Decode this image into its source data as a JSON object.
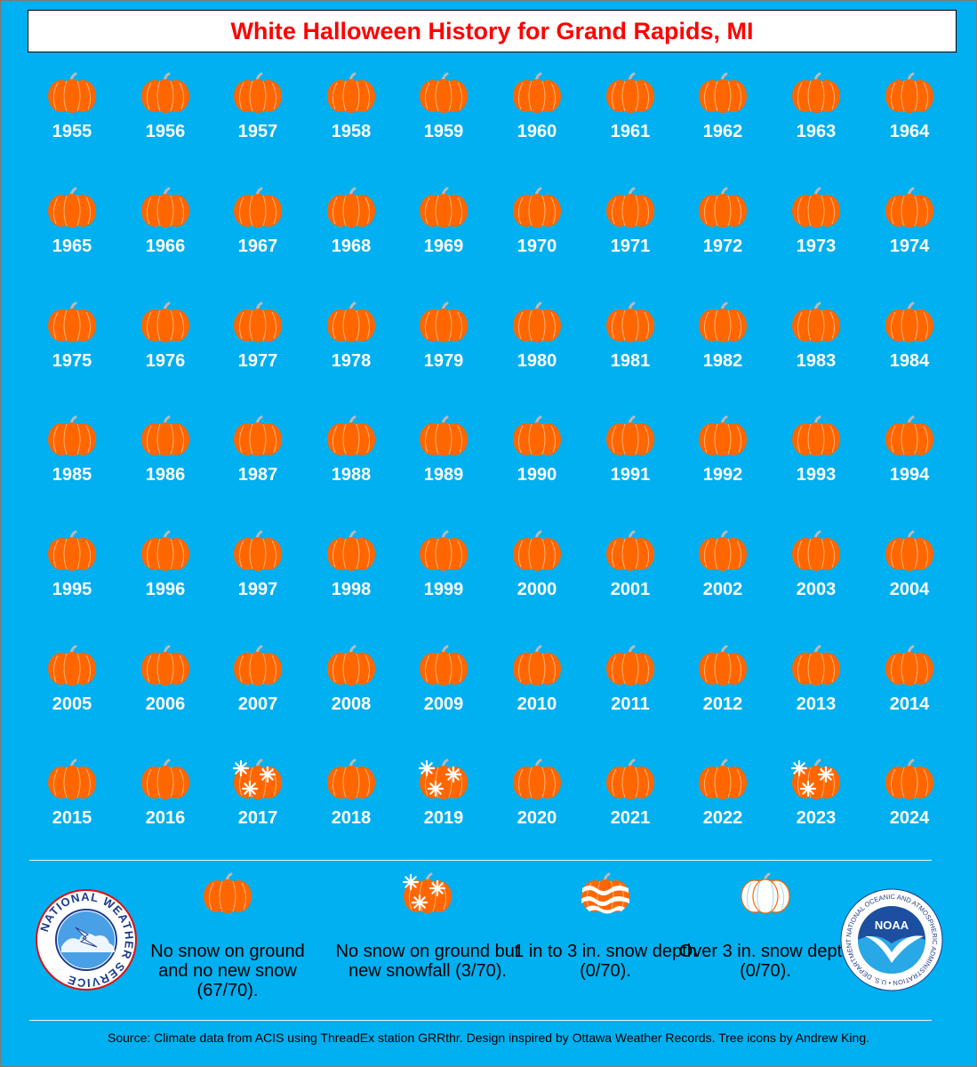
{
  "title": "White Halloween History for Grand Rapids, MI",
  "colors": {
    "background": "#00B0F0",
    "pumpkin": "#FF6600",
    "title": "#FF0000",
    "snow": "#FFFFFF"
  },
  "years": [
    {
      "year": "1955",
      "category": "none"
    },
    {
      "year": "1956",
      "category": "none"
    },
    {
      "year": "1957",
      "category": "none"
    },
    {
      "year": "1958",
      "category": "none"
    },
    {
      "year": "1959",
      "category": "none"
    },
    {
      "year": "1960",
      "category": "none"
    },
    {
      "year": "1961",
      "category": "none"
    },
    {
      "year": "1962",
      "category": "none"
    },
    {
      "year": "1963",
      "category": "none"
    },
    {
      "year": "1964",
      "category": "none"
    },
    {
      "year": "1965",
      "category": "none"
    },
    {
      "year": "1966",
      "category": "none"
    },
    {
      "year": "1967",
      "category": "none"
    },
    {
      "year": "1968",
      "category": "none"
    },
    {
      "year": "1969",
      "category": "none"
    },
    {
      "year": "1970",
      "category": "none"
    },
    {
      "year": "1971",
      "category": "none"
    },
    {
      "year": "1972",
      "category": "none"
    },
    {
      "year": "1973",
      "category": "none"
    },
    {
      "year": "1974",
      "category": "none"
    },
    {
      "year": "1975",
      "category": "none"
    },
    {
      "year": "1976",
      "category": "none"
    },
    {
      "year": "1977",
      "category": "none"
    },
    {
      "year": "1978",
      "category": "none"
    },
    {
      "year": "1979",
      "category": "none"
    },
    {
      "year": "1980",
      "category": "none"
    },
    {
      "year": "1981",
      "category": "none"
    },
    {
      "year": "1982",
      "category": "none"
    },
    {
      "year": "1983",
      "category": "none"
    },
    {
      "year": "1984",
      "category": "none"
    },
    {
      "year": "1985",
      "category": "none"
    },
    {
      "year": "1986",
      "category": "none"
    },
    {
      "year": "1987",
      "category": "none"
    },
    {
      "year": "1988",
      "category": "none"
    },
    {
      "year": "1989",
      "category": "none"
    },
    {
      "year": "1990",
      "category": "none"
    },
    {
      "year": "1991",
      "category": "none"
    },
    {
      "year": "1992",
      "category": "none"
    },
    {
      "year": "1993",
      "category": "none"
    },
    {
      "year": "1994",
      "category": "none"
    },
    {
      "year": "1995",
      "category": "none"
    },
    {
      "year": "1996",
      "category": "none"
    },
    {
      "year": "1997",
      "category": "none"
    },
    {
      "year": "1998",
      "category": "none"
    },
    {
      "year": "1999",
      "category": "none"
    },
    {
      "year": "2000",
      "category": "none"
    },
    {
      "year": "2001",
      "category": "none"
    },
    {
      "year": "2002",
      "category": "none"
    },
    {
      "year": "2003",
      "category": "none"
    },
    {
      "year": "2004",
      "category": "none"
    },
    {
      "year": "2005",
      "category": "none"
    },
    {
      "year": "2006",
      "category": "none"
    },
    {
      "year": "2007",
      "category": "none"
    },
    {
      "year": "2008",
      "category": "none"
    },
    {
      "year": "2009",
      "category": "none"
    },
    {
      "year": "2010",
      "category": "none"
    },
    {
      "year": "2011",
      "category": "none"
    },
    {
      "year": "2012",
      "category": "none"
    },
    {
      "year": "2013",
      "category": "none"
    },
    {
      "year": "2014",
      "category": "none"
    },
    {
      "year": "2015",
      "category": "none"
    },
    {
      "year": "2016",
      "category": "none"
    },
    {
      "year": "2017",
      "category": "snowfall"
    },
    {
      "year": "2018",
      "category": "none"
    },
    {
      "year": "2019",
      "category": "snowfall"
    },
    {
      "year": "2020",
      "category": "none"
    },
    {
      "year": "2021",
      "category": "none"
    },
    {
      "year": "2022",
      "category": "none"
    },
    {
      "year": "2023",
      "category": "snowfall"
    },
    {
      "year": "2024",
      "category": "none"
    }
  ],
  "legend": [
    {
      "key": "none",
      "text": "No snow on ground and no new snow (67/70)."
    },
    {
      "key": "snowfall",
      "text": "No snow on ground but new snowfall (3/70)."
    },
    {
      "key": "depth-1-3",
      "text": "1 in to 3 in. snow depth (0/70)."
    },
    {
      "key": "depth-over-3",
      "text": "Over 3 in. snow depth (0/70)."
    }
  ],
  "logos": {
    "nws_text": "NATIONAL WEATHER SERVICE",
    "noaa_center": "NOAA",
    "noaa_ring": "NATIONAL OCEANIC AND ATMOSPHERIC ADMINISTRATION • U.S. DEPARTMENT OF COMMERCE"
  },
  "source": "Source: Climate data from ACIS using ThreadEx station GRRthr. Design inspired by Ottawa Weather Records. Tree icons by Andrew King."
}
